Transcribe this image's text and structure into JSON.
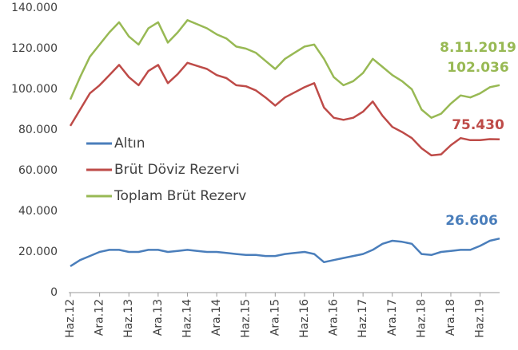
{
  "chart_data": {
    "type": "line",
    "categories": [
      "Haz.12",
      null,
      null,
      "Ara.12",
      null,
      null,
      "Haz.13",
      null,
      null,
      "Ara.13",
      null,
      null,
      "Haz.14",
      null,
      null,
      "Ara.14",
      null,
      null,
      "Haz.15",
      null,
      null,
      "Ara.15",
      null,
      null,
      "Haz.16",
      null,
      null,
      "Ara.16",
      null,
      null,
      "Haz.17",
      null,
      null,
      "Ara.17",
      null,
      null,
      "Haz.18",
      null,
      null,
      "Ara.18",
      null,
      null,
      "Haz.19",
      null,
      null
    ],
    "series": [
      {
        "name": "Altın",
        "color": "#4a7ebb",
        "end_label": "26.606",
        "values": [
          13000,
          16000,
          18000,
          20000,
          21000,
          21000,
          20000,
          20000,
          21000,
          21000,
          20000,
          20500,
          21000,
          20500,
          20000,
          20000,
          19500,
          19000,
          18500,
          18500,
          18000,
          18000,
          19000,
          19500,
          20000,
          19000,
          15000,
          16000,
          17000,
          18000,
          19000,
          21000,
          24000,
          25500,
          25000,
          24000,
          19000,
          18500,
          20000,
          20500,
          21000,
          21000,
          23000,
          25500,
          26606
        ]
      },
      {
        "name": "Brüt Döviz Rezervi",
        "color": "#be4b48",
        "end_label": "75.430",
        "values": [
          82000,
          90000,
          98000,
          102000,
          107000,
          112000,
          106000,
          102000,
          109000,
          112000,
          103000,
          107500,
          113000,
          111500,
          110000,
          107000,
          105500,
          102000,
          101500,
          99500,
          96000,
          92000,
          96000,
          98500,
          101000,
          103000,
          91000,
          86000,
          85000,
          86000,
          89000,
          94000,
          87000,
          81500,
          79000,
          76000,
          71000,
          67500,
          68000,
          72500,
          76000,
          75000,
          75000,
          75500,
          75430
        ]
      },
      {
        "name": "Toplam Brüt Rezerv",
        "color": "#98b954",
        "end_label": "102.036",
        "values": [
          95000,
          106000,
          116000,
          122000,
          128000,
          133000,
          126000,
          122000,
          130000,
          133000,
          123000,
          128000,
          134000,
          132000,
          130000,
          127000,
          125000,
          121000,
          120000,
          118000,
          114000,
          110000,
          115000,
          118000,
          121000,
          122000,
          115000,
          106000,
          102000,
          104000,
          108000,
          115000,
          111000,
          107000,
          104000,
          100000,
          90000,
          86000,
          88000,
          93000,
          97000,
          96000,
          98000,
          101000,
          102036
        ]
      }
    ],
    "date_label": "8.11.2019",
    "ylim": [
      0,
      140000
    ],
    "yticks": [
      0,
      {
        "value": 20000,
        "label": "20.000"
      },
      {
        "value": 40000,
        "label": "40.000"
      },
      {
        "value": 60000,
        "label": "60.000"
      },
      {
        "value": 80000,
        "label": "80.000"
      },
      {
        "value": 100000,
        "label": "100.000"
      },
      {
        "value": 120000,
        "label": "120.000"
      },
      {
        "value": 140000,
        "label": "140.000"
      }
    ],
    "grid": false,
    "legend": "left"
  }
}
